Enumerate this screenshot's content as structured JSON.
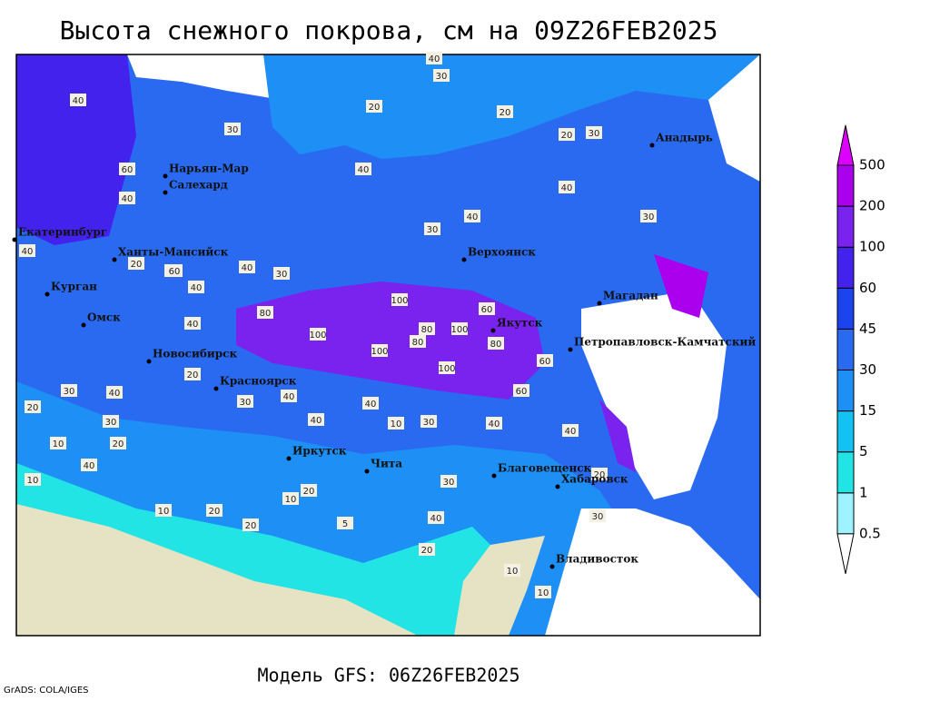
{
  "title": "Высота снежного покрова, см на 09Z26FEB2025",
  "footer": "Модель GFS: 06Z26FEB2025",
  "credit": "GrADS: COLA/IGES",
  "legend": {
    "levels": [
      0.5,
      1,
      5,
      15,
      30,
      45,
      60,
      100,
      200,
      500
    ],
    "colors": [
      "#ffffff",
      "#9ff2ff",
      "#22e4e4",
      "#12c2f2",
      "#1e90f5",
      "#2a6af0",
      "#1c44ee",
      "#4422ee",
      "#7a22ee",
      "#aa00ee",
      "#dd00ff"
    ]
  },
  "cities": [
    "Анадырь",
    "Нарьян-Мар",
    "Салехард",
    "Екатеринбург",
    "Ханты-Мансийск",
    "Верхоянск",
    "Магадан",
    "Курган",
    "Омск",
    "Якутск",
    "Петропавловск-Камчатский",
    "Новосибирск",
    "Красноярск",
    "Иркутск",
    "Чита",
    "Благовещенск",
    "Хабаровск",
    "Владивосток"
  ],
  "contour_labels": [
    40,
    30,
    30,
    20,
    20,
    20,
    30,
    40,
    60,
    40,
    40,
    40,
    40,
    30,
    30,
    40,
    20,
    40,
    40,
    40,
    30,
    60,
    80,
    100,
    100,
    80,
    100,
    80,
    100,
    60,
    80,
    60,
    100,
    40,
    60,
    40,
    30,
    20,
    30,
    40,
    40,
    30,
    40,
    40,
    20,
    30,
    40,
    10,
    20,
    10,
    10,
    20,
    5,
    20,
    20,
    30,
    20,
    10,
    40,
    10,
    40,
    10,
    20,
    10,
    30
  ]
}
